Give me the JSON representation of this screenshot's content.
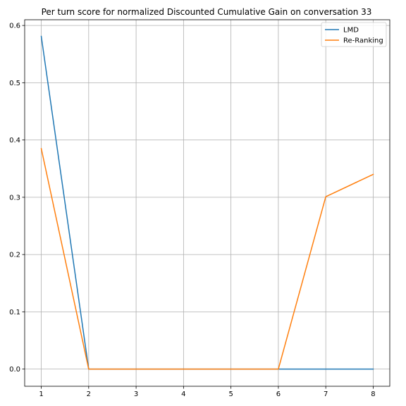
{
  "chart_data": {
    "type": "line",
    "title": "Per turn score for normalized Discounted Cumulative Gain on conversation 33",
    "xlabel": "",
    "ylabel": "",
    "x": [
      1,
      2,
      3,
      4,
      5,
      6,
      7,
      8
    ],
    "xticks": [
      "1",
      "2",
      "3",
      "4",
      "5",
      "6",
      "7",
      "8"
    ],
    "yticks": [
      "0.0",
      "0.1",
      "0.2",
      "0.3",
      "0.4",
      "0.5",
      "0.6"
    ],
    "xlim": [
      0.65,
      8.35
    ],
    "ylim": [
      -0.03,
      0.61
    ],
    "grid": true,
    "legend_position": "top-right",
    "series": [
      {
        "name": "LMD",
        "color": "#1f77b4",
        "values": [
          0.581,
          0.0,
          0.0,
          0.0,
          0.0,
          0.0,
          0.0,
          0.0
        ]
      },
      {
        "name": "Re-Ranking",
        "color": "#ff7f0e",
        "values": [
          0.385,
          0.0,
          0.0,
          0.0,
          0.0,
          0.0,
          0.301,
          0.34
        ]
      }
    ]
  }
}
